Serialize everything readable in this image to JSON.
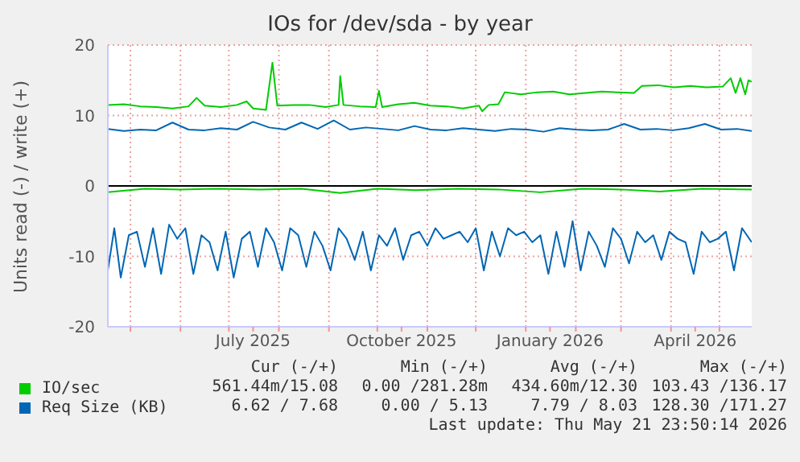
{
  "chart_data": {
    "type": "line",
    "title": "IOs for /dev/sda - by year",
    "ylabel": "Units read (-) / write (+)",
    "xlim": [
      "2025-04-17",
      "2026-05-21"
    ],
    "xticks": [
      {
        "value": "2025-05-01",
        "label": null
      },
      {
        "value": "2025-06-01",
        "label": null
      },
      {
        "value": "2025-07-01",
        "label": null
      },
      {
        "value": "2025-07-16",
        "label": "July 2025"
      },
      {
        "value": "2025-08-01",
        "label": null
      },
      {
        "value": "2025-09-01",
        "label": null
      },
      {
        "value": "2025-10-01",
        "label": null
      },
      {
        "value": "2025-10-16",
        "label": "October 2025"
      },
      {
        "value": "2025-11-01",
        "label": null
      },
      {
        "value": "2025-12-01",
        "label": null
      },
      {
        "value": "2026-01-01",
        "label": null
      },
      {
        "value": "2026-01-16",
        "label": "January 2026"
      },
      {
        "value": "2026-02-01",
        "label": null
      },
      {
        "value": "2026-03-01",
        "label": null
      },
      {
        "value": "2026-04-01",
        "label": null
      },
      {
        "value": "2026-04-16",
        "label": "April 2026"
      },
      {
        "value": "2026-05-01",
        "label": null
      }
    ],
    "ylim": [
      -20,
      20
    ],
    "yticks": [
      -20,
      -10,
      0,
      10,
      20
    ],
    "grid": true,
    "marker": "none",
    "legend": "bottom",
    "ref_lines": [
      {
        "axis": "y",
        "value": 0,
        "color": "#000000"
      }
    ],
    "series": [
      {
        "name": "IO/sec",
        "color": "#00cc00",
        "x": [
          "2025-04-17",
          "2025-04-27",
          "2025-05-07",
          "2025-05-17",
          "2025-05-27",
          "2025-06-06",
          "2025-06-11",
          "2025-06-16",
          "2025-06-26",
          "2025-07-06",
          "2025-07-12",
          "2025-07-16",
          "2025-07-24",
          "2025-07-28",
          "2025-07-31",
          "2025-08-10",
          "2025-08-20",
          "2025-08-30",
          "2025-09-07",
          "2025-09-08",
          "2025-09-10",
          "2025-09-20",
          "2025-09-30",
          "2025-10-02",
          "2025-10-04",
          "2025-10-14",
          "2025-10-24",
          "2025-11-03",
          "2025-11-13",
          "2025-11-23",
          "2025-12-03",
          "2025-12-05",
          "2025-12-09",
          "2025-12-15",
          "2025-12-19",
          "2025-12-29",
          "2026-01-08",
          "2026-01-18",
          "2026-01-28",
          "2026-02-07",
          "2026-02-17",
          "2026-02-27",
          "2026-03-09",
          "2026-03-14",
          "2026-03-24",
          "2026-04-03",
          "2026-04-13",
          "2026-04-23",
          "2026-05-03",
          "2026-05-08",
          "2026-05-11",
          "2026-05-14",
          "2026-05-17",
          "2026-05-19",
          "2026-05-21"
        ],
        "values": [
          11.5,
          11.6,
          11.3,
          11.2,
          11.0,
          11.3,
          12.5,
          11.4,
          11.2,
          11.5,
          12.0,
          11.0,
          10.8,
          17.5,
          11.4,
          11.5,
          11.5,
          11.2,
          11.5,
          15.6,
          11.5,
          11.3,
          11.2,
          13.5,
          11.2,
          11.6,
          11.8,
          11.4,
          11.3,
          11.0,
          11.4,
          10.6,
          11.5,
          11.6,
          13.3,
          13.0,
          13.3,
          13.4,
          13.0,
          13.2,
          13.4,
          13.3,
          13.2,
          14.2,
          14.3,
          14.0,
          14.2,
          14.0,
          14.1,
          15.3,
          13.2,
          15.3,
          13.0,
          15.0,
          14.8
        ]
      },
      {
        "color": "#00cc00",
        "x": [
          "2025-04-17",
          "2025-05-10",
          "2025-06-01",
          "2025-06-25",
          "2025-07-20",
          "2025-08-15",
          "2025-09-08",
          "2025-10-01",
          "2025-10-25",
          "2025-11-20",
          "2025-12-15",
          "2026-01-10",
          "2026-02-05",
          "2026-03-01",
          "2026-03-25",
          "2026-04-20",
          "2026-05-21"
        ],
        "values": [
          -0.9,
          -0.4,
          -0.5,
          -0.4,
          -0.5,
          -0.4,
          -1.0,
          -0.4,
          -0.6,
          -0.4,
          -0.5,
          -0.9,
          -0.4,
          -0.5,
          -0.8,
          -0.4,
          -0.5
        ]
      },
      {
        "name": "Req Size (KB)",
        "color": "#0066b3",
        "x": [
          "2025-04-17",
          "2025-04-27",
          "2025-05-07",
          "2025-05-17",
          "2025-05-27",
          "2025-06-06",
          "2025-06-16",
          "2025-06-26",
          "2025-07-06",
          "2025-07-16",
          "2025-07-26",
          "2025-08-05",
          "2025-08-15",
          "2025-08-25",
          "2025-09-04",
          "2025-09-14",
          "2025-09-24",
          "2025-10-04",
          "2025-10-14",
          "2025-10-24",
          "2025-11-03",
          "2025-11-13",
          "2025-11-23",
          "2025-12-03",
          "2025-12-13",
          "2025-12-23",
          "2026-01-02",
          "2026-01-12",
          "2026-01-22",
          "2026-02-01",
          "2026-02-11",
          "2026-02-21",
          "2026-03-03",
          "2026-03-13",
          "2026-03-23",
          "2026-04-02",
          "2026-04-12",
          "2026-04-22",
          "2026-05-02",
          "2026-05-12",
          "2026-05-21"
        ],
        "values": [
          8.1,
          7.8,
          8.0,
          7.9,
          9.0,
          8.0,
          7.9,
          8.2,
          8.0,
          9.1,
          8.3,
          8.0,
          9.0,
          8.1,
          9.3,
          8.0,
          8.3,
          8.1,
          7.9,
          8.5,
          8.0,
          7.9,
          8.2,
          8.0,
          7.8,
          8.1,
          8.0,
          7.7,
          8.2,
          8.0,
          7.9,
          8.0,
          8.8,
          8.0,
          8.1,
          7.9,
          8.2,
          8.8,
          8.0,
          8.1,
          7.8
        ]
      },
      {
        "color": "#0066b3",
        "x": [
          "2025-04-17",
          "2025-04-21",
          "2025-04-25",
          "2025-04-30",
          "2025-05-05",
          "2025-05-10",
          "2025-05-15",
          "2025-05-20",
          "2025-05-25",
          "2025-05-30",
          "2025-06-04",
          "2025-06-09",
          "2025-06-14",
          "2025-06-19",
          "2025-06-24",
          "2025-06-29",
          "2025-07-04",
          "2025-07-09",
          "2025-07-14",
          "2025-07-19",
          "2025-07-24",
          "2025-07-29",
          "2025-08-03",
          "2025-08-08",
          "2025-08-13",
          "2025-08-18",
          "2025-08-23",
          "2025-08-28",
          "2025-09-02",
          "2025-09-07",
          "2025-09-12",
          "2025-09-17",
          "2025-09-22",
          "2025-09-27",
          "2025-10-02",
          "2025-10-07",
          "2025-10-12",
          "2025-10-17",
          "2025-10-22",
          "2025-10-27",
          "2025-11-01",
          "2025-11-06",
          "2025-11-11",
          "2025-11-16",
          "2025-11-21",
          "2025-11-26",
          "2025-12-01",
          "2025-12-06",
          "2025-12-11",
          "2025-12-16",
          "2025-12-21",
          "2025-12-26",
          "2025-12-31",
          "2026-01-05",
          "2026-01-10",
          "2026-01-15",
          "2026-01-20",
          "2026-01-25",
          "2026-01-30",
          "2026-02-04",
          "2026-02-09",
          "2026-02-14",
          "2026-02-19",
          "2026-02-24",
          "2026-03-01",
          "2026-03-06",
          "2026-03-11",
          "2026-03-16",
          "2026-03-21",
          "2026-03-26",
          "2026-03-31",
          "2026-04-05",
          "2026-04-10",
          "2026-04-15",
          "2026-04-20",
          "2026-04-25",
          "2026-04-30",
          "2026-05-05",
          "2026-05-10",
          "2026-05-15",
          "2026-05-21"
        ],
        "values": [
          -12.0,
          -6.0,
          -13.0,
          -7.0,
          -6.5,
          -11.5,
          -6.0,
          -12.5,
          -5.5,
          -7.5,
          -6.0,
          -12.5,
          -7.0,
          -8.0,
          -12.0,
          -6.5,
          -13.0,
          -7.5,
          -6.5,
          -11.5,
          -6.0,
          -8.0,
          -12.0,
          -6.0,
          -7.0,
          -11.5,
          -6.5,
          -8.5,
          -12.0,
          -6.0,
          -7.5,
          -10.5,
          -6.5,
          -12.0,
          -7.0,
          -8.5,
          -6.0,
          -10.5,
          -7.0,
          -6.5,
          -8.5,
          -6.0,
          -7.5,
          -7.0,
          -6.5,
          -8.0,
          -6.0,
          -12.0,
          -6.5,
          -10.0,
          -6.0,
          -7.0,
          -6.5,
          -8.0,
          -7.0,
          -12.5,
          -6.5,
          -11.5,
          -5.0,
          -12.0,
          -6.5,
          -8.5,
          -11.5,
          -6.0,
          -7.5,
          -11.0,
          -6.5,
          -8.0,
          -7.0,
          -10.5,
          -6.5,
          -7.5,
          -8.0,
          -12.5,
          -6.5,
          -8.0,
          -7.5,
          -6.5,
          -12.0,
          -6.0,
          -8.0
        ]
      }
    ],
    "annotations": [
      "Cur (-/+)",
      "Min (-/+)",
      "Avg (-/+)",
      "Max (-/+)",
      "561.44m/15.08",
      "0.00 /281.28m",
      "434.60m/12.30",
      "103.43 /136.17",
      "6.62 / 7.68",
      "0.00 / 5.13",
      "7.79 / 8.03",
      "128.30 /171.27",
      "Last update: Thu May 21 23:50:14 2026"
    ]
  }
}
